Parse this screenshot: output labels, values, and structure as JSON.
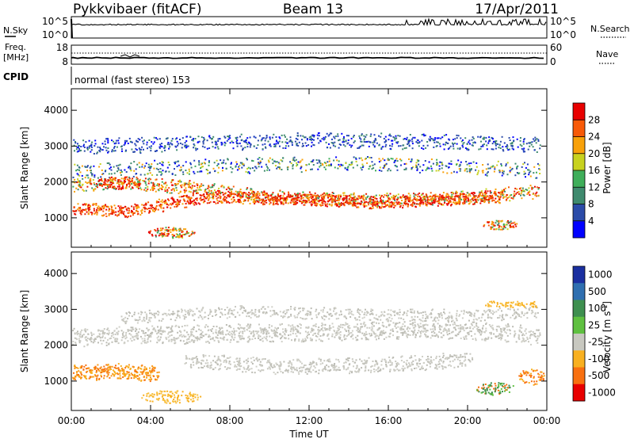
{
  "header": {
    "station": "Pykkvibaer (fitACF)",
    "beam": "Beam 13",
    "date": "17/Apr/2011"
  },
  "top_panels": {
    "noise": {
      "left_label": "N.Sky",
      "right_label": "N.Search",
      "left_ticks": [
        "10^5",
        "10^0"
      ],
      "right_ticks": [
        "10^5",
        "10^0"
      ]
    },
    "freq": {
      "left_label_1": "Freq.",
      "left_label_2": "[MHz]",
      "right_label": "Nave",
      "left_ticks": [
        "18",
        "8"
      ],
      "right_ticks": [
        "60",
        "0"
      ]
    },
    "cpid": {
      "label": "CPID",
      "text": "normal (fast stereo) 153"
    }
  },
  "chart_data": [
    {
      "type": "heatmap",
      "name": "power",
      "ylabel": "Slant Range [km]",
      "xlabel": "",
      "ylim": [
        180,
        4600
      ],
      "yticks": [
        "1000",
        "2000",
        "3000",
        "4000"
      ],
      "ytick_values": [
        1000,
        2000,
        3000,
        4000
      ],
      "colorbar": {
        "label": "Power [dB]",
        "range": [
          0,
          32
        ],
        "ticks": [
          "4",
          "8",
          "12",
          "16",
          "20",
          "24",
          "28"
        ],
        "tick_values": [
          4,
          8,
          12,
          16,
          20,
          24,
          28
        ],
        "colors": [
          "#0000ff",
          "#2b4ba8",
          "#3f8a6e",
          "#3fae5a",
          "#c8d21f",
          "#f8a10a",
          "#f85a08",
          "#e80000"
        ]
      }
    },
    {
      "type": "heatmap",
      "name": "velocity",
      "ylabel": "Slant Range [km]",
      "xlabel": "Time UT",
      "ylim": [
        180,
        4600
      ],
      "yticks": [
        "1000",
        "2000",
        "3000",
        "4000"
      ],
      "ytick_values": [
        1000,
        2000,
        3000,
        4000
      ],
      "xticks": [
        "00:00",
        "04:00",
        "08:00",
        "12:00",
        "16:00",
        "20:00",
        "00:00"
      ],
      "xtick_values_hours": [
        0,
        4,
        8,
        12,
        16,
        20,
        24
      ],
      "colorbar": {
        "label": "Velocity [m s^-1]",
        "ticks": [
          "1000",
          "500",
          "100",
          "25",
          "-25",
          "-100",
          "-500",
          "-1000"
        ],
        "colors": [
          "#1a2fa0",
          "#2f6fb0",
          "#3e8f4f",
          "#5fc040",
          "#c8c8c0",
          "#f8b020",
          "#f87010",
          "#e80000"
        ]
      }
    }
  ]
}
